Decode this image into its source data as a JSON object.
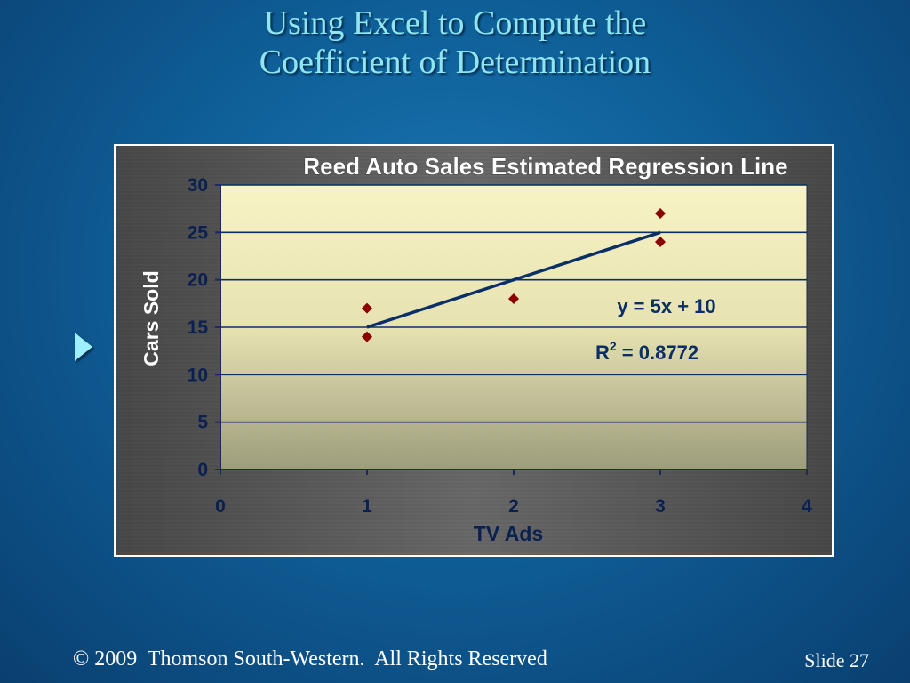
{
  "slide": {
    "title_line1": "Using Excel to Compute the",
    "title_line2": "Coefficient of Determination",
    "footer_copyright": "© 2009  Thomson South-Western.  All Rights Reserved",
    "footer_slide": "Slide 27",
    "colors": {
      "title": "#8fe6f0",
      "arrow": "#9ef0ff"
    }
  },
  "chart_data": {
    "type": "scatter",
    "title": "Reed Auto Sales Estimated Regression Line",
    "xlabel": "TV Ads",
    "ylabel": "Cars Sold",
    "xlim": [
      0,
      4
    ],
    "ylim": [
      0,
      30
    ],
    "xticks": [
      "0",
      "1",
      "2",
      "3",
      "4"
    ],
    "yticks": [
      "0",
      "5",
      "10",
      "15",
      "20",
      "25",
      "30"
    ],
    "grid": "horizontal",
    "points": [
      {
        "x": 1,
        "y": 14
      },
      {
        "x": 1,
        "y": 17
      },
      {
        "x": 2,
        "y": 18
      },
      {
        "x": 3,
        "y": 24
      },
      {
        "x": 3,
        "y": 27
      }
    ],
    "trendline": {
      "slope": 5,
      "intercept": 10,
      "x_range": [
        1,
        3
      ]
    },
    "equation": "y = 5x + 10",
    "r2_label": "R",
    "r2_sup": "2",
    "r2_value": " = 0.8772",
    "colors": {
      "points": "#8b0000",
      "line": "#0a2f66",
      "grid": "#0a2f66",
      "text": "#0a2f66",
      "plot_top": "#f7f3c4",
      "plot_bottom": "#9d9d7c"
    }
  }
}
